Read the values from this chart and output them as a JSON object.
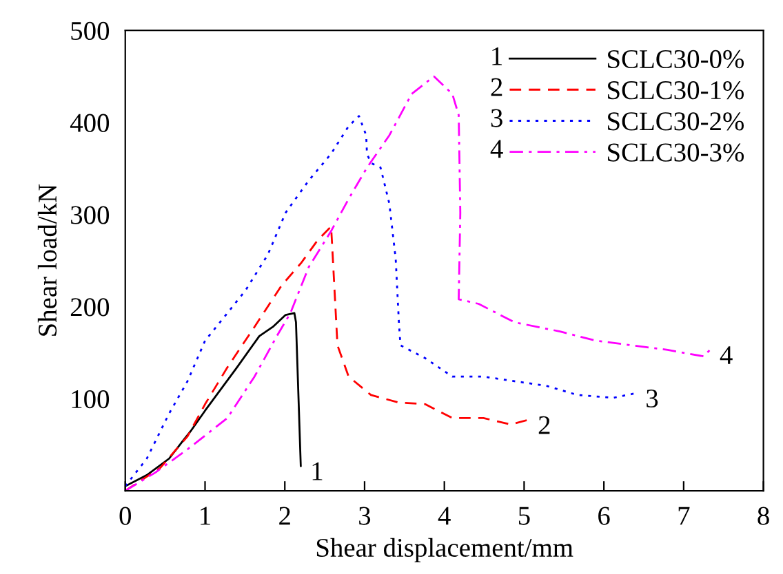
{
  "chart_data": {
    "type": "line",
    "xlabel": "Shear displacement/mm",
    "ylabel": "Shear load/kN",
    "xlim": [
      0,
      8
    ],
    "ylim": [
      0,
      500
    ],
    "xticks": [
      0,
      1,
      2,
      3,
      4,
      5,
      6,
      7,
      8
    ],
    "yticks": [
      100,
      200,
      300,
      400,
      500
    ],
    "grid": false,
    "legend": "top right",
    "marker": "none",
    "series": [
      {
        "name": "SCLC30-0%",
        "color": "#000000",
        "line_style": "solid",
        "x": [
          0,
          0.27,
          0.55,
          0.72,
          0.83,
          1.0,
          1.4,
          1.68,
          1.85,
          2.01,
          2.12,
          2.14,
          2.2
        ],
        "values": [
          5,
          17,
          35,
          54,
          66,
          87,
          134,
          168,
          178,
          191,
          193,
          183,
          27
        ]
      },
      {
        "name": "SCLC30-1%",
        "color": "#ff0000",
        "line_style": "dashed",
        "x": [
          0,
          0.44,
          0.78,
          1.0,
          1.28,
          1.62,
          1.96,
          2.21,
          2.41,
          2.58,
          2.59,
          2.66,
          2.8,
          3.08,
          3.42,
          3.76,
          4.1,
          4.49,
          4.83,
          5.05
        ],
        "values": [
          0,
          25,
          59,
          94,
          134,
          178,
          223,
          248,
          272,
          287,
          272,
          158,
          124,
          104,
          96,
          94,
          79,
          79,
          72,
          77
        ]
      },
      {
        "name": "SCLC30-2%",
        "color": "#0000ff",
        "line_style": "dotted",
        "x": [
          0,
          0.27,
          0.55,
          0.78,
          1.0,
          1.28,
          1.51,
          1.79,
          2.01,
          2.3,
          2.58,
          2.8,
          2.93,
          3.02,
          3.03,
          3.08,
          3.2,
          3.31,
          3.39,
          3.43,
          3.45,
          3.76,
          4.1,
          4.49,
          4.88,
          5.28,
          5.67,
          6.12,
          6.4
        ],
        "values": [
          5,
          35,
          84,
          119,
          163,
          193,
          218,
          257,
          302,
          337,
          366,
          396,
          407,
          386,
          366,
          356,
          351,
          312,
          252,
          183,
          158,
          144,
          124,
          124,
          119,
          114,
          104,
          101,
          106
        ]
      },
      {
        "name": "SCLC30-3%",
        "color": "#ff00ff",
        "line_style": "dashdot",
        "x": [
          0,
          0.38,
          0.78,
          1.28,
          1.62,
          1.9,
          2.07,
          2.3,
          2.58,
          2.8,
          3.03,
          3.31,
          3.59,
          3.81,
          3.87,
          4.1,
          4.18,
          4.2,
          4.18,
          4.43,
          4.88,
          5.45,
          5.9,
          6.35,
          6.8,
          7.25,
          7.33
        ],
        "values": [
          0,
          20,
          45,
          79,
          124,
          168,
          193,
          243,
          282,
          317,
          351,
          386,
          431,
          446,
          450,
          431,
          408,
          302,
          208,
          203,
          183,
          173,
          163,
          158,
          153,
          146,
          153
        ]
      }
    ],
    "annotations": [
      {
        "text": "1",
        "x": 2.2,
        "y": 27
      },
      {
        "text": "2",
        "x": 5.05,
        "y": 77
      },
      {
        "text": "3",
        "x": 6.4,
        "y": 106
      },
      {
        "text": "4",
        "x": 7.33,
        "y": 153
      }
    ]
  }
}
